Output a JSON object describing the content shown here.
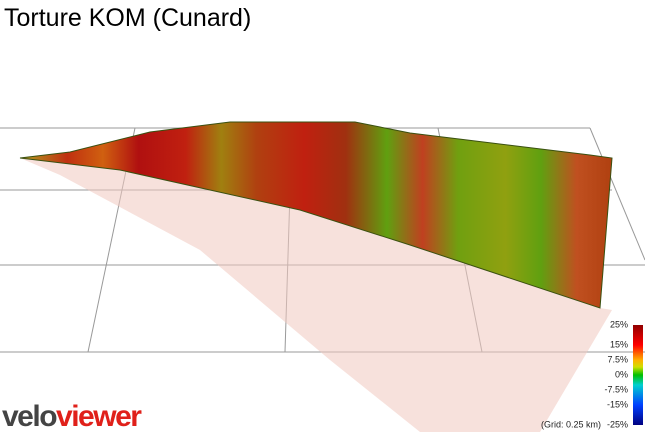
{
  "header": {
    "title": "Torture KOM (Cunard)"
  },
  "legend": {
    "labels": [
      "25%",
      "15%",
      "7.5%",
      "0%",
      "-7.5%",
      "-15%",
      "-25%"
    ],
    "note": "(Grid: 0.25 km)"
  },
  "logo": {
    "part1": "velo",
    "part2": "viewer"
  }
}
